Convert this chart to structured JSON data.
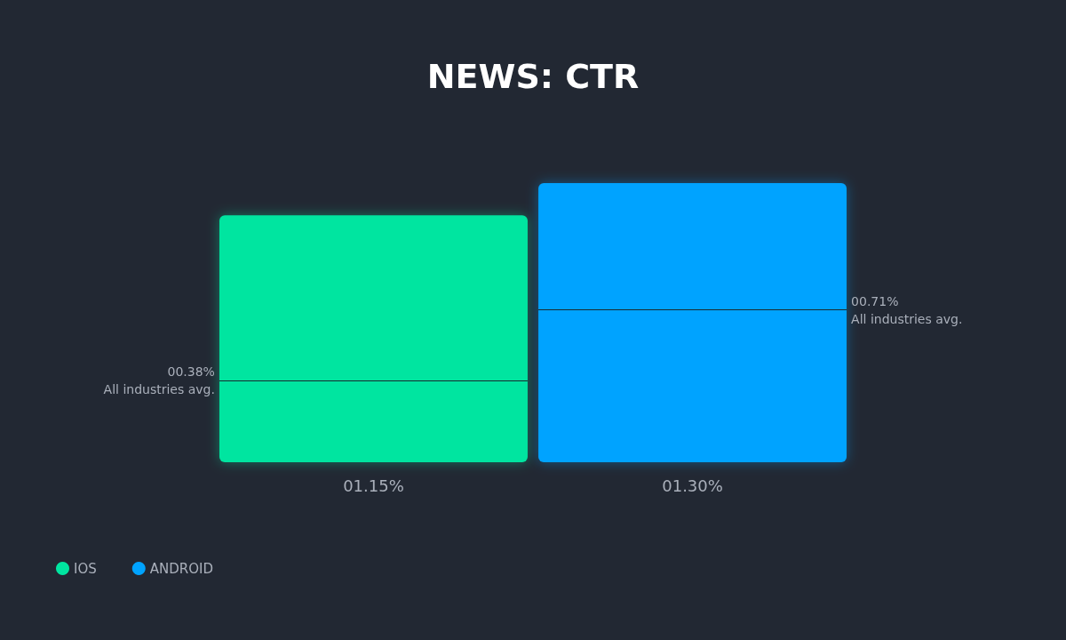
{
  "chart_data": {
    "type": "bar",
    "title": "NEWS: CTR",
    "categories": [
      null
    ],
    "series": [
      {
        "name": "IOS",
        "color": "#00e5a0",
        "values": [
          1.15
        ],
        "value_labels": [
          "01.15%"
        ]
      },
      {
        "name": "ANDROID",
        "color": "#00a3ff",
        "values": [
          1.3
        ],
        "value_labels": [
          "01.30%"
        ]
      }
    ],
    "ref_lines": [
      {
        "axis": "y",
        "value": 0.38,
        "label": "00.38%\nAll industries avg.",
        "color": "#1a2a30"
      },
      {
        "axis": "y",
        "value": 0.71,
        "label": "00.71%\nAll industries avg.",
        "color": "#1a2a30"
      }
    ],
    "legend": "bottom left"
  }
}
